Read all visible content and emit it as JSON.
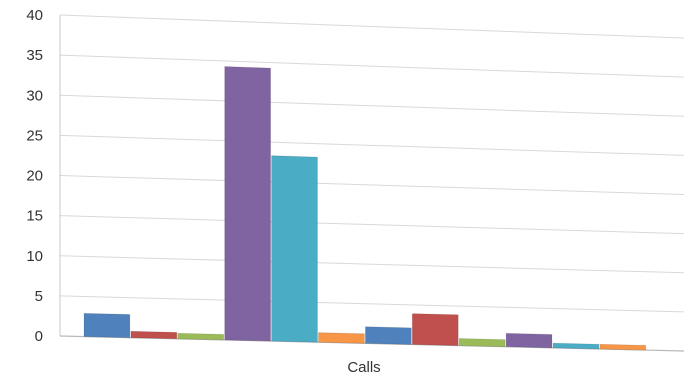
{
  "chart_data": {
    "type": "bar",
    "categories": [
      "Calls"
    ],
    "series": [
      {
        "values": [
          2.9
        ],
        "color": "#4f81bd"
      },
      {
        "values": [
          0.8
        ],
        "color": "#c0504d"
      },
      {
        "values": [
          0.7
        ],
        "color": "#9bbb59"
      },
      {
        "values": [
          34.3
        ],
        "color": "#8064a2"
      },
      {
        "values": [
          23.3
        ],
        "color": "#4bacc6"
      },
      {
        "values": [
          1.2
        ],
        "color": "#f79646"
      },
      {
        "values": [
          2.1
        ],
        "color": "#4f81bd"
      },
      {
        "values": [
          3.9
        ],
        "color": "#c0504d"
      },
      {
        "values": [
          0.9
        ],
        "color": "#9bbb59"
      },
      {
        "values": [
          1.7
        ],
        "color": "#8064a2"
      },
      {
        "values": [
          0.6
        ],
        "color": "#4bacc6"
      },
      {
        "values": [
          0.6
        ],
        "color": "#f79646"
      }
    ],
    "title": "",
    "xlabel": "Calls",
    "ylabel": "",
    "ylim": [
      0,
      40
    ],
    "yticks": [
      "0",
      "5",
      "10",
      "15",
      "20",
      "25",
      "30",
      "35",
      "40"
    ],
    "grid": true,
    "legend": "none"
  }
}
